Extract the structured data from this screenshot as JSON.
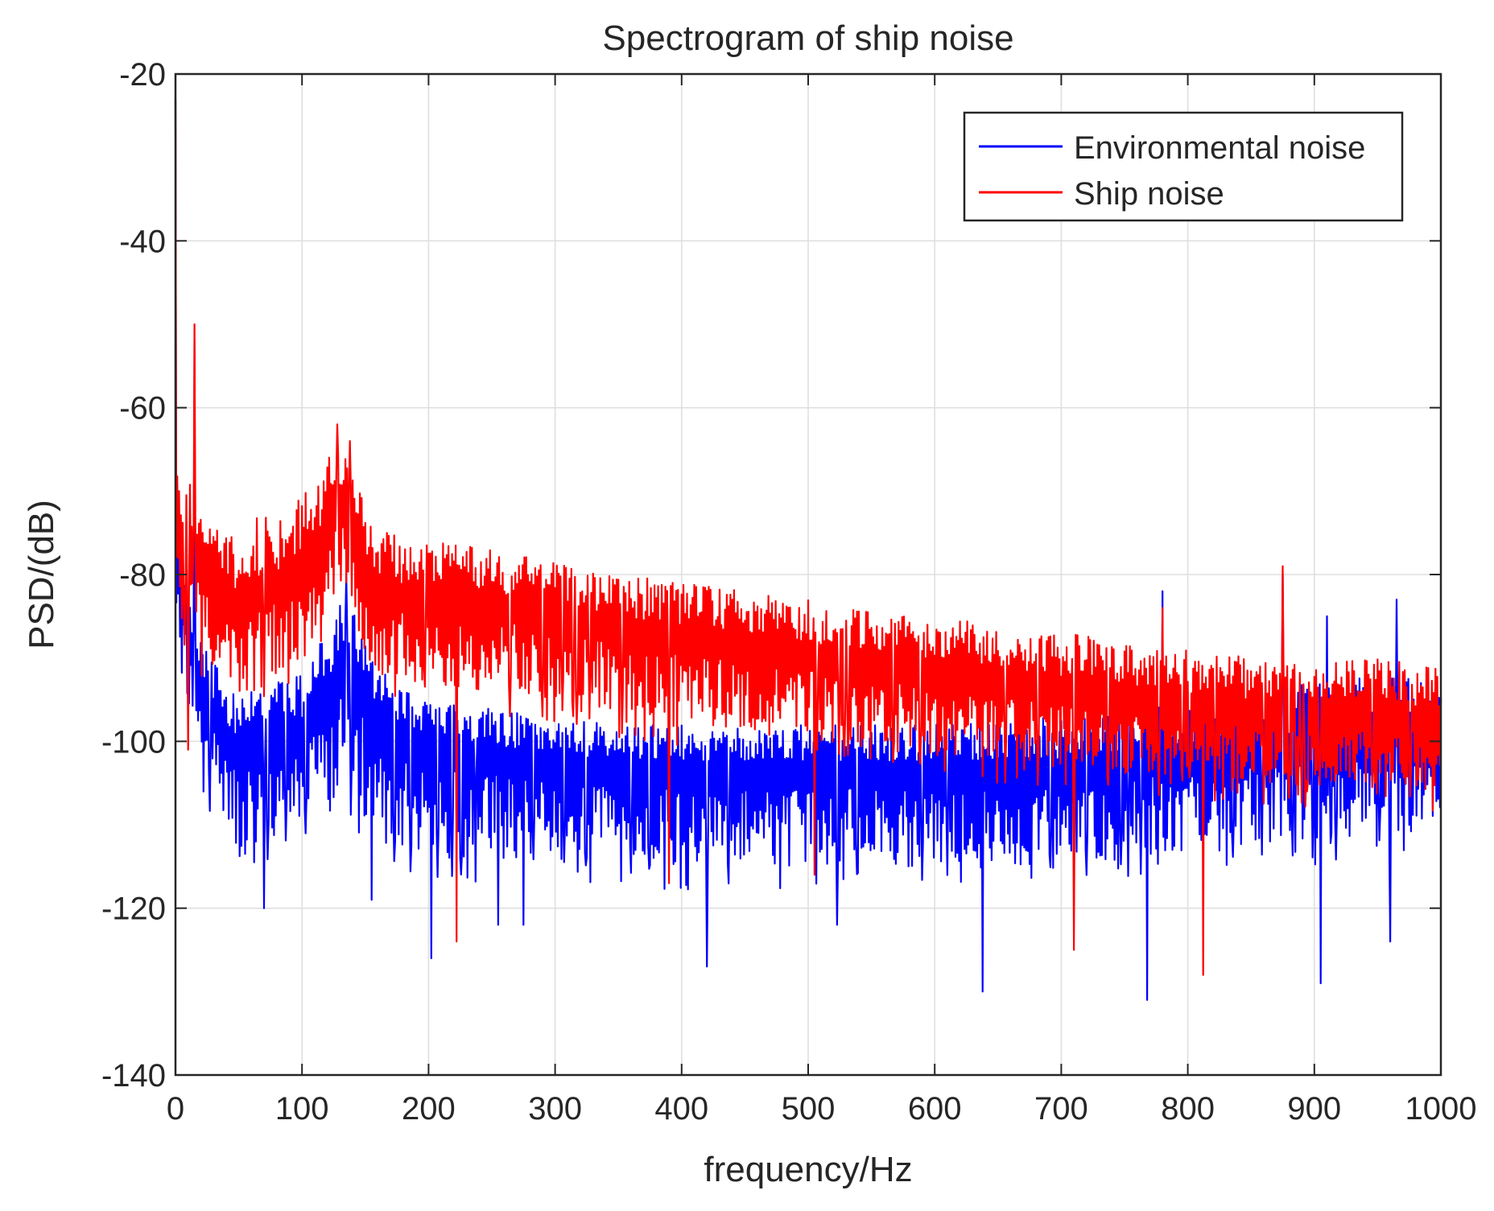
{
  "chart_data": {
    "type": "line",
    "title": "Spectrogram of ship noise",
    "xlabel": "frequency/Hz",
    "ylabel": "PSD/(dB)",
    "xlim": [
      0,
      1000
    ],
    "ylim": [
      -140,
      -20
    ],
    "xticks": [
      0,
      100,
      200,
      300,
      400,
      500,
      600,
      700,
      800,
      900,
      1000
    ],
    "yticks": [
      -20,
      -40,
      -60,
      -80,
      -100,
      -120,
      -140
    ],
    "grid": true,
    "legend_position": "top-right",
    "series": [
      {
        "name": "Environmental noise",
        "color": "#0000ff",
        "envelope": {
          "frequency": [
            0,
            5,
            10,
            15,
            20,
            30,
            40,
            50,
            60,
            70,
            80,
            90,
            100,
            110,
            120,
            130,
            140,
            150,
            160,
            180,
            200,
            250,
            300,
            350,
            400,
            450,
            500,
            550,
            600,
            650,
            700,
            750,
            800,
            850,
            900,
            950,
            1000
          ],
          "median": [
            -77,
            -83,
            -88,
            -92,
            -95,
            -97,
            -100,
            -102,
            -101,
            -100,
            -100,
            -100,
            -99,
            -97,
            -95,
            -92,
            -92,
            -95,
            -98,
            -100,
            -101,
            -102,
            -103,
            -104,
            -104,
            -104,
            -104,
            -104,
            -104,
            -104,
            -104,
            -103,
            -102,
            -101,
            -101,
            -100,
            -100
          ],
          "upper": [
            -70,
            -75,
            -82,
            -86,
            -88,
            -90,
            -93,
            -94,
            -94,
            -94,
            -93,
            -92,
            -92,
            -89,
            -87,
            -83,
            -84,
            -88,
            -91,
            -93,
            -95,
            -96,
            -97,
            -98,
            -98,
            -98,
            -98,
            -98,
            -98,
            -97,
            -97,
            -96,
            -95,
            -94,
            -93,
            -92,
            -92
          ],
          "lower": [
            -85,
            -90,
            -95,
            -100,
            -104,
            -108,
            -110,
            -114,
            -113,
            -112,
            -112,
            -111,
            -110,
            -109,
            -108,
            -106,
            -107,
            -110,
            -112,
            -113,
            -114,
            -114,
            -114,
            -114,
            -115,
            -115,
            -115,
            -115,
            -115,
            -115,
            -115,
            -114,
            -113,
            -112,
            -112,
            -111,
            -111
          ]
        },
        "peaks": [
          [
            0,
            -23
          ],
          [
            15,
            -52
          ],
          [
            135,
            -80
          ],
          [
            780,
            -82
          ],
          [
            875,
            -80
          ],
          [
            910,
            -85
          ],
          [
            965,
            -83
          ]
        ],
        "dips": [
          [
            70,
            -120
          ],
          [
            155,
            -119
          ],
          [
            202,
            -126
          ],
          [
            255,
            -122
          ],
          [
            275,
            -122
          ],
          [
            420,
            -127
          ],
          [
            523,
            -122
          ],
          [
            638,
            -130
          ],
          [
            768,
            -131
          ],
          [
            905,
            -129
          ],
          [
            960,
            -124
          ]
        ]
      },
      {
        "name": "Ship noise",
        "color": "#ff0000",
        "envelope": {
          "frequency": [
            0,
            5,
            10,
            15,
            20,
            30,
            40,
            50,
            60,
            70,
            80,
            90,
            100,
            110,
            120,
            130,
            140,
            150,
            160,
            180,
            200,
            250,
            300,
            350,
            400,
            450,
            500,
            550,
            600,
            650,
            700,
            750,
            800,
            850,
            900,
            950,
            1000
          ],
          "median": [
            -70,
            -76,
            -78,
            -78,
            -80,
            -82,
            -83,
            -84,
            -84,
            -82,
            -82,
            -82,
            -80,
            -78,
            -75,
            -72,
            -74,
            -80,
            -82,
            -83,
            -83,
            -84,
            -85,
            -87,
            -88,
            -89,
            -90,
            -91,
            -92,
            -93,
            -94,
            -95,
            -96,
            -97,
            -97,
            -97,
            -98
          ],
          "upper": [
            -66,
            -69,
            -68,
            -70,
            -72,
            -74,
            -75,
            -76,
            -74,
            -72,
            -73,
            -72,
            -70,
            -69,
            -66,
            -64,
            -66,
            -72,
            -74,
            -76,
            -76,
            -77,
            -78,
            -80,
            -81,
            -82,
            -83,
            -84,
            -85,
            -86,
            -87,
            -88,
            -89,
            -90,
            -90,
            -90,
            -91
          ],
          "lower": [
            -78,
            -84,
            -88,
            -90,
            -90,
            -92,
            -93,
            -94,
            -94,
            -92,
            -92,
            -92,
            -90,
            -88,
            -84,
            -82,
            -84,
            -90,
            -92,
            -93,
            -93,
            -94,
            -95,
            -97,
            -98,
            -99,
            -100,
            -101,
            -102,
            -103,
            -103,
            -104,
            -104,
            -105,
            -105,
            -105,
            -106
          ]
        },
        "peaks": [
          [
            0,
            -23
          ],
          [
            15,
            -50
          ],
          [
            128,
            -62
          ],
          [
            138,
            -64
          ],
          [
            780,
            -84
          ],
          [
            875,
            -79
          ]
        ],
        "dips": [
          [
            10,
            -101
          ],
          [
            222,
            -124
          ],
          [
            710,
            -125
          ],
          [
            812,
            -128
          ],
          [
            390,
            -117
          ],
          [
            505,
            -116
          ]
        ]
      }
    ]
  }
}
